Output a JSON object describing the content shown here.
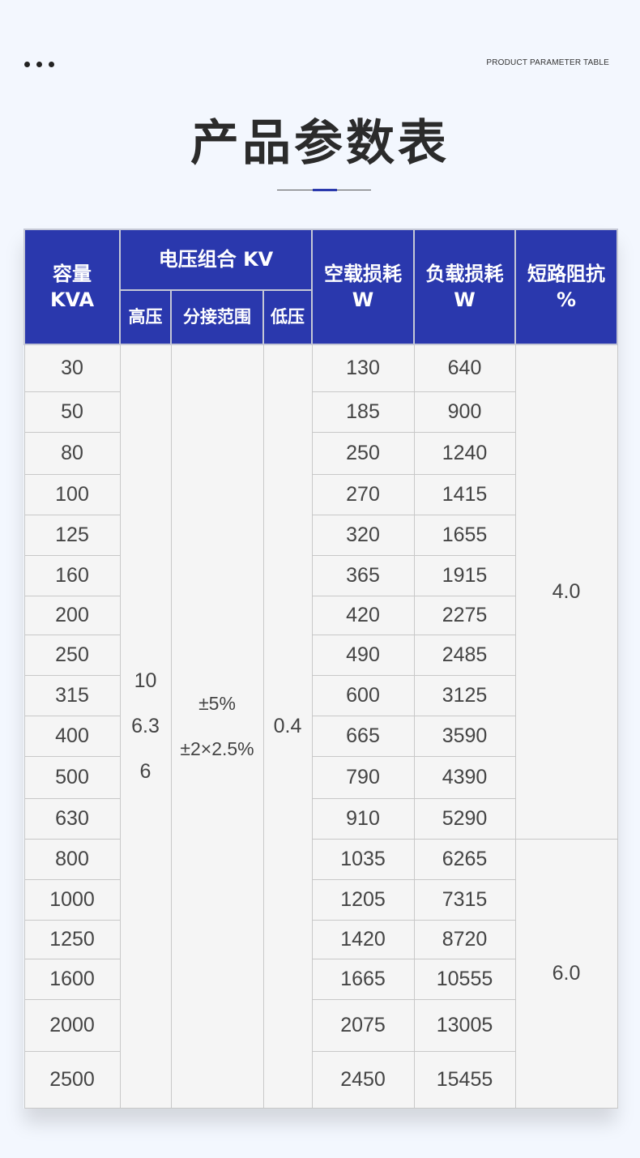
{
  "header": {
    "label": "PRODUCT PARAMETER TABLE",
    "title": "产品参数表"
  },
  "accent_color": "#2a38ad",
  "table": {
    "headers": {
      "capacity": "容量 KVA",
      "voltage_group": "电压组合 KV",
      "hv": "高压",
      "tap": "分接范围",
      "lv": "低压",
      "no_load": "空载损耗 W",
      "load": "负载损耗 W",
      "impedance": "短路阻抗 %"
    },
    "hv_values": [
      "10",
      "6.3",
      "6"
    ],
    "tap_values": [
      "±5%",
      "±2×2.5%"
    ],
    "lv_value": "0.4",
    "impedance_values": [
      "4.0",
      "6.0"
    ],
    "rows": [
      {
        "capacity": "30",
        "no_load": "130",
        "load": "640"
      },
      {
        "capacity": "50",
        "no_load": "185",
        "load": "900"
      },
      {
        "capacity": "80",
        "no_load": "250",
        "load": "1240"
      },
      {
        "capacity": "100",
        "no_load": "270",
        "load": "1415"
      },
      {
        "capacity": "125",
        "no_load": "320",
        "load": "1655"
      },
      {
        "capacity": "160",
        "no_load": "365",
        "load": "1915"
      },
      {
        "capacity": "200",
        "no_load": "420",
        "load": "2275"
      },
      {
        "capacity": "250",
        "no_load": "490",
        "load": "2485"
      },
      {
        "capacity": "315",
        "no_load": "600",
        "load": "3125"
      },
      {
        "capacity": "400",
        "no_load": "665",
        "load": "3590"
      },
      {
        "capacity": "500",
        "no_load": "790",
        "load": "4390"
      },
      {
        "capacity": "630",
        "no_load": "910",
        "load": "5290"
      },
      {
        "capacity": "800",
        "no_load": "1035",
        "load": "6265"
      },
      {
        "capacity": "1000",
        "no_load": "1205",
        "load": "7315"
      },
      {
        "capacity": "1250",
        "no_load": "1420",
        "load": "8720"
      },
      {
        "capacity": "1600",
        "no_load": "1665",
        "load": "10555"
      },
      {
        "capacity": "2000",
        "no_load": "2075",
        "load": "13005"
      },
      {
        "capacity": "2500",
        "no_load": "2450",
        "load": "15455"
      }
    ]
  }
}
